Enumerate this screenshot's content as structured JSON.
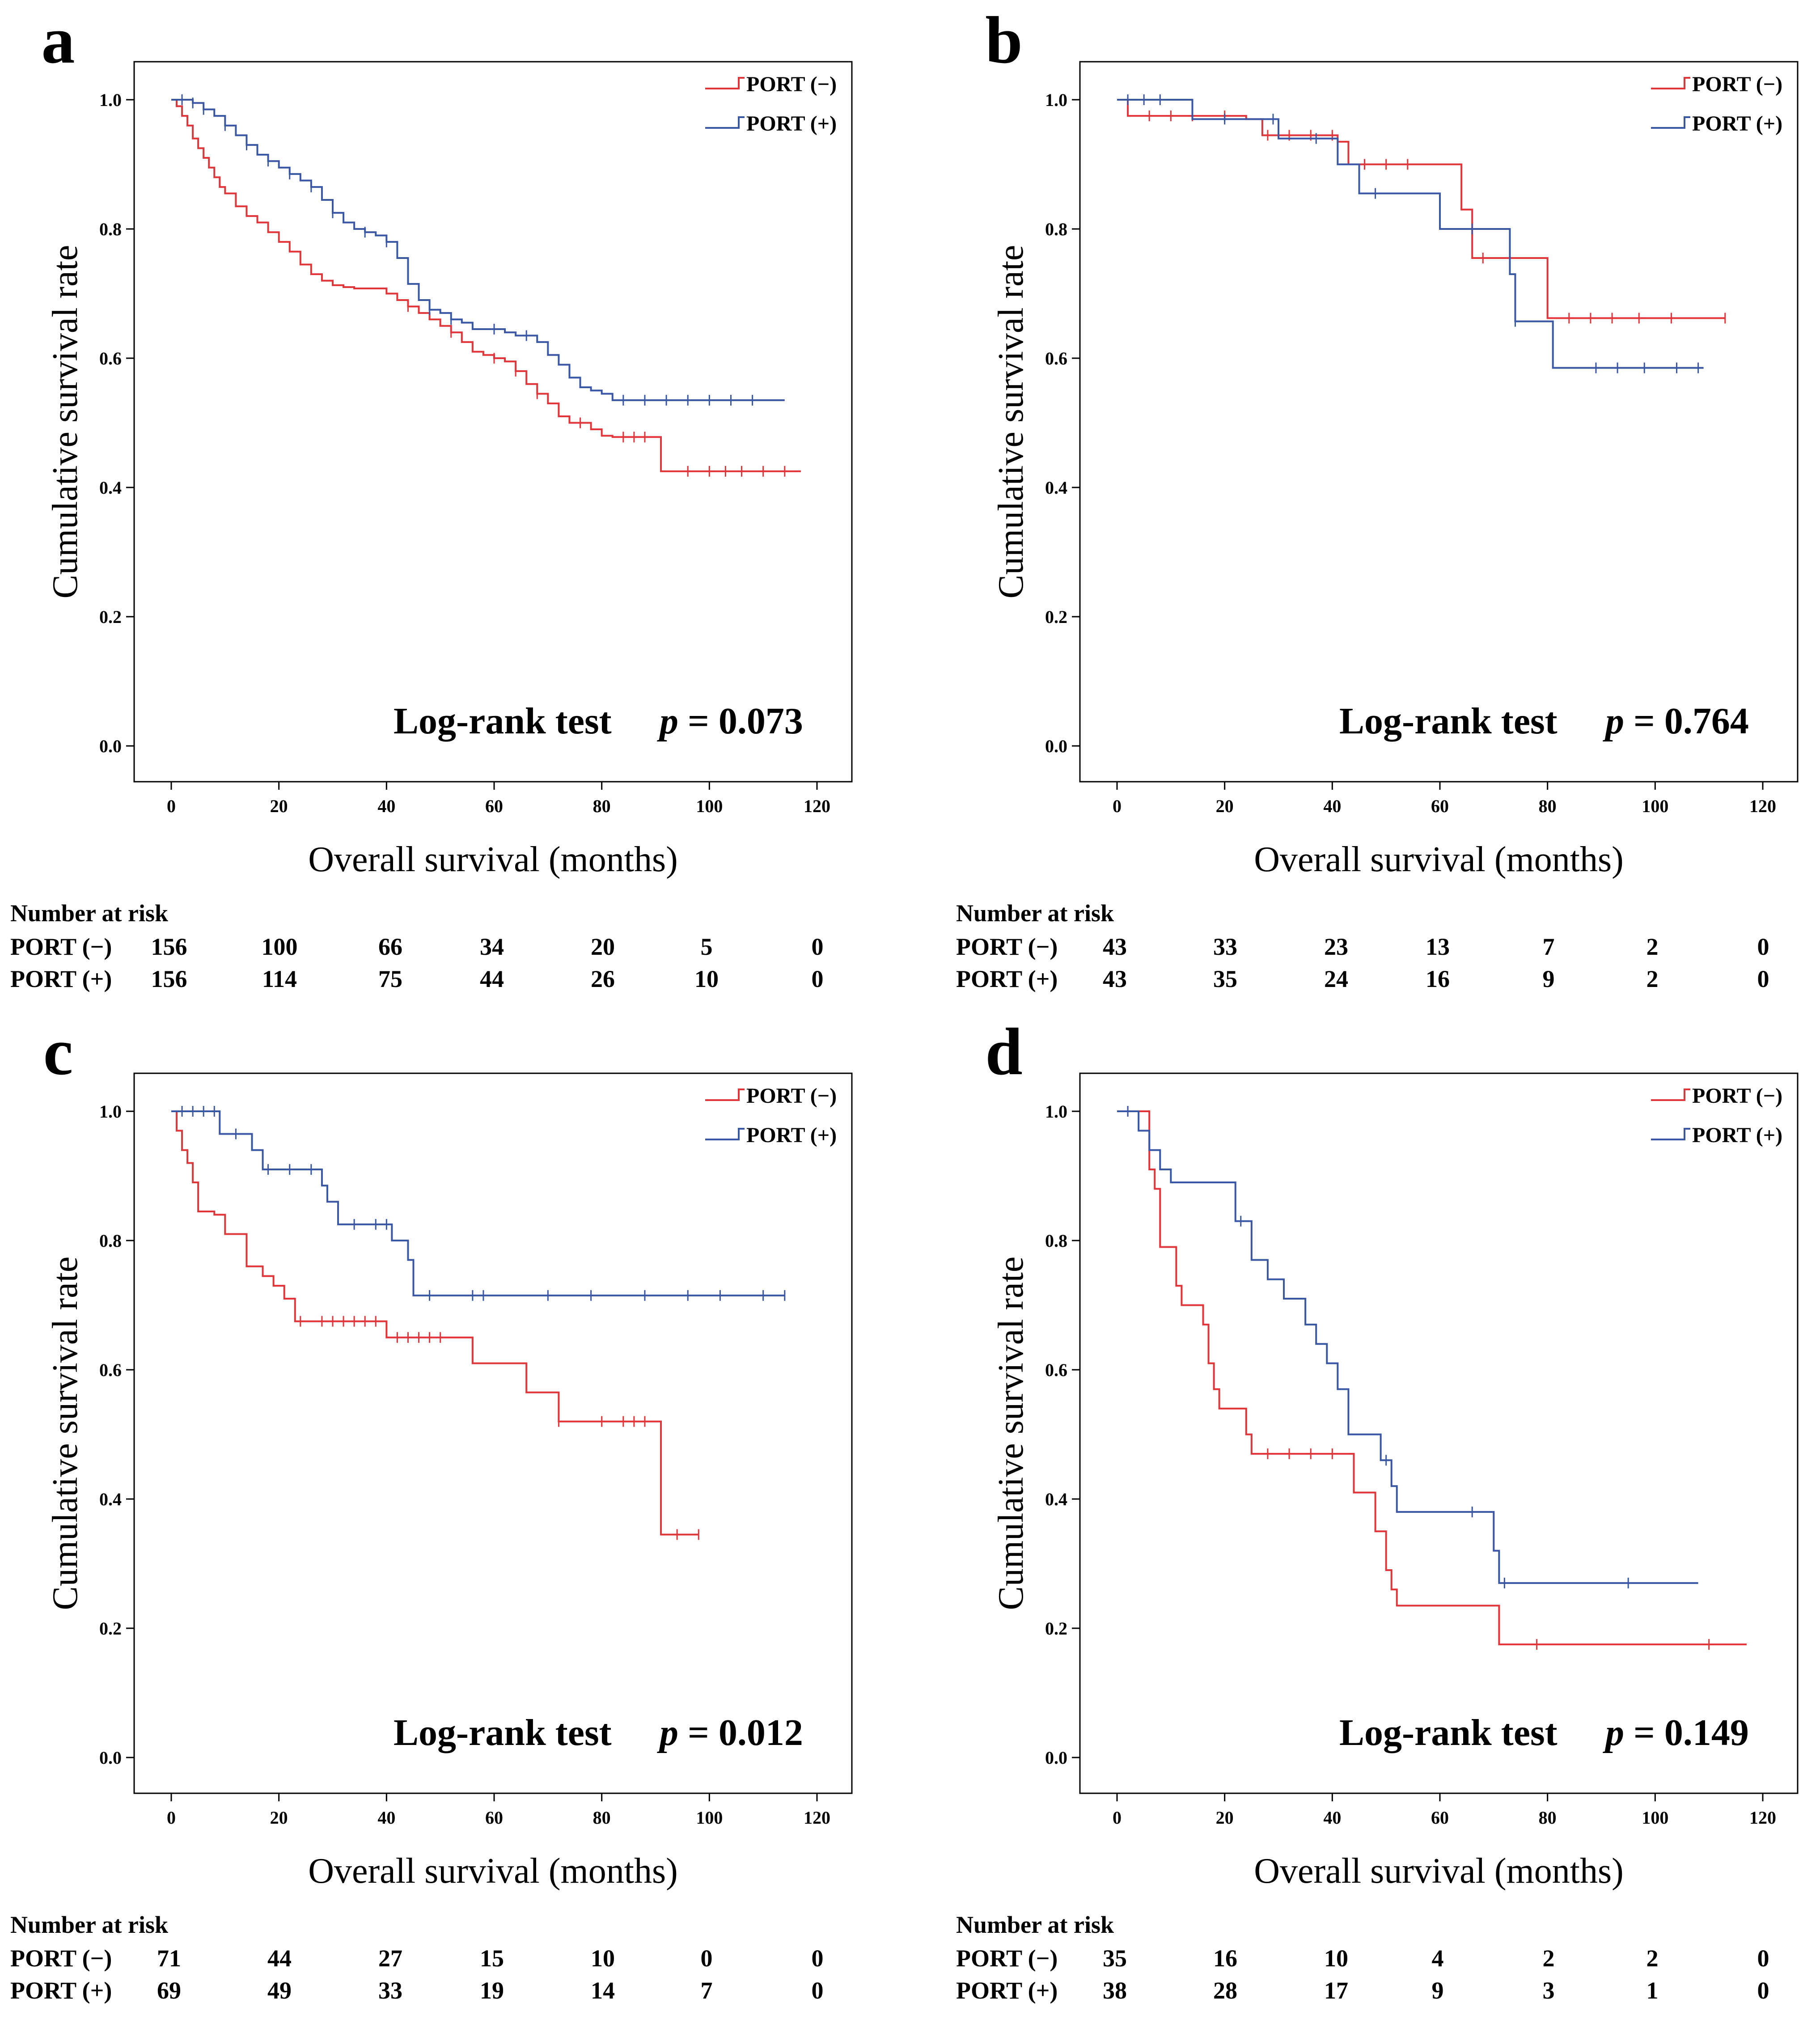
{
  "colors": {
    "port_minus": "#e2353a",
    "port_plus": "#3a57a6",
    "axis": "#000000"
  },
  "risk_header": "Number at risk",
  "chart_data": [
    {
      "panel": "a",
      "type": "line",
      "xlabel": "Overall survival (months)",
      "ylabel": "Cumulative survival rate",
      "xlim": [
        0,
        120
      ],
      "ylim": [
        0,
        1
      ],
      "xticks": [
        "0",
        "20",
        "40",
        "60",
        "80",
        "100",
        "120"
      ],
      "yticks": [
        "0.0",
        "0.2",
        "0.4",
        "0.6",
        "0.8",
        "1.0"
      ],
      "legend": [
        "PORT (−)",
        "PORT (+)"
      ],
      "logrank_label": "Log-rank test",
      "p_label": "p",
      "p_value": "= 0.073",
      "series": [
        {
          "name": "PORT (−)",
          "color": "port_minus",
          "x": [
            0,
            1,
            2,
            3,
            4,
            5,
            6,
            7,
            8,
            9,
            10,
            12,
            14,
            16,
            18,
            20,
            22,
            24,
            26,
            28,
            30,
            32,
            34,
            36,
            38,
            40,
            42,
            44,
            46,
            48,
            50,
            52,
            54,
            56,
            58,
            60,
            62,
            64,
            66,
            68,
            70,
            72,
            74,
            76,
            78,
            80,
            82,
            86,
            88,
            91,
            94,
            117
          ],
          "y": [
            1.0,
            0.99,
            0.975,
            0.96,
            0.94,
            0.925,
            0.91,
            0.895,
            0.88,
            0.865,
            0.855,
            0.835,
            0.82,
            0.81,
            0.795,
            0.78,
            0.765,
            0.745,
            0.73,
            0.72,
            0.713,
            0.71,
            0.708,
            0.708,
            0.708,
            0.7,
            0.69,
            0.68,
            0.67,
            0.66,
            0.65,
            0.64,
            0.625,
            0.61,
            0.605,
            0.6,
            0.595,
            0.58,
            0.56,
            0.545,
            0.53,
            0.51,
            0.5,
            0.5,
            0.49,
            0.48,
            0.478,
            0.478,
            0.478,
            0.425,
            0.425,
            0.425
          ],
          "censored": [
            44,
            52,
            60,
            64,
            68,
            76,
            84,
            86,
            88,
            96,
            100,
            103,
            106,
            110,
            114
          ]
        },
        {
          "name": "PORT (+)",
          "color": "port_plus",
          "x": [
            0,
            2,
            4,
            6,
            8,
            10,
            12,
            14,
            16,
            18,
            20,
            22,
            24,
            26,
            28,
            30,
            32,
            34,
            36,
            38,
            40,
            42,
            44,
            46,
            48,
            50,
            52,
            54,
            56,
            58,
            60,
            62,
            64,
            66,
            68,
            70,
            72,
            74,
            76,
            78,
            80,
            82,
            114
          ],
          "y": [
            1.0,
            1.0,
            0.995,
            0.985,
            0.975,
            0.96,
            0.945,
            0.93,
            0.915,
            0.905,
            0.895,
            0.885,
            0.875,
            0.865,
            0.845,
            0.825,
            0.81,
            0.8,
            0.795,
            0.79,
            0.78,
            0.755,
            0.715,
            0.69,
            0.675,
            0.67,
            0.66,
            0.655,
            0.645,
            0.645,
            0.645,
            0.64,
            0.635,
            0.635,
            0.625,
            0.605,
            0.59,
            0.57,
            0.555,
            0.55,
            0.545,
            0.535,
            0.535
          ],
          "censored": [
            2,
            4,
            6,
            10,
            14,
            18,
            22,
            26,
            30,
            36,
            40,
            48,
            52,
            60,
            66,
            84,
            88,
            92,
            96,
            100,
            104,
            108
          ]
        }
      ],
      "risk_times": [
        "0",
        "20",
        "40",
        "60",
        "80",
        "100",
        "120"
      ],
      "risk_rows": [
        {
          "label": "PORT (−)",
          "counts": [
            "156",
            "100",
            "66",
            "34",
            "20",
            "5",
            "0"
          ]
        },
        {
          "label": "PORT (+)",
          "counts": [
            "156",
            "114",
            "75",
            "44",
            "26",
            "10",
            "0"
          ]
        }
      ]
    },
    {
      "panel": "b",
      "type": "line",
      "xlabel": "Overall survival (months)",
      "ylabel": "Cumulative survival rate",
      "xlim": [
        0,
        120
      ],
      "ylim": [
        0,
        1
      ],
      "xticks": [
        "0",
        "20",
        "40",
        "60",
        "80",
        "100",
        "120"
      ],
      "yticks": [
        "0.0",
        "0.2",
        "0.4",
        "0.6",
        "0.8",
        "1.0"
      ],
      "legend": [
        "PORT (−)",
        "PORT (+)"
      ],
      "logrank_label": "Log-rank test",
      "p_label": "p",
      "p_value": "= 0.764",
      "series": [
        {
          "name": "PORT (−)",
          "color": "port_minus",
          "x": [
            0,
            2,
            24,
            27,
            41,
            43,
            63,
            64,
            66,
            78,
            80,
            113
          ],
          "y": [
            1.0,
            0.975,
            0.97,
            0.945,
            0.935,
            0.9,
            0.9,
            0.83,
            0.755,
            0.755,
            0.662,
            0.662
          ],
          "censored": [
            6,
            10,
            14,
            20,
            28,
            32,
            36,
            40,
            46,
            50,
            54,
            68,
            84,
            88,
            92,
            97,
            103,
            113
          ]
        },
        {
          "name": "PORT (+)",
          "color": "port_plus",
          "x": [
            0,
            14,
            30,
            41,
            45,
            60,
            65,
            73,
            74,
            80,
            81,
            109
          ],
          "y": [
            1.0,
            0.97,
            0.94,
            0.9,
            0.855,
            0.8,
            0.8,
            0.73,
            0.657,
            0.657,
            0.585,
            0.585
          ],
          "censored": [
            2,
            5,
            8,
            20,
            29,
            37,
            48,
            66,
            74,
            89,
            93,
            98,
            104,
            108
          ]
        }
      ],
      "risk_times": [
        "0",
        "20",
        "40",
        "60",
        "80",
        "100",
        "120"
      ],
      "risk_rows": [
        {
          "label": "PORT (−)",
          "counts": [
            "43",
            "33",
            "23",
            "13",
            "7",
            "2",
            "0"
          ]
        },
        {
          "label": "PORT (+)",
          "counts": [
            "43",
            "35",
            "24",
            "16",
            "9",
            "2",
            "0"
          ]
        }
      ]
    },
    {
      "panel": "c",
      "type": "line",
      "xlabel": "Overall survival (months)",
      "ylabel": "Cumulative survival rate",
      "xlim": [
        0,
        120
      ],
      "ylim": [
        0,
        1
      ],
      "xticks": [
        "0",
        "20",
        "40",
        "60",
        "80",
        "100",
        "120"
      ],
      "yticks": [
        "0.0",
        "0.2",
        "0.4",
        "0.6",
        "0.8",
        "1.0"
      ],
      "legend": [
        "PORT (−)",
        "PORT (+)"
      ],
      "logrank_label": "Log-rank test",
      "p_label": "p",
      "p_value": "= 0.012",
      "series": [
        {
          "name": "PORT (−)",
          "color": "port_minus",
          "x": [
            0,
            1,
            2,
            3,
            4,
            5,
            8,
            10,
            14,
            17,
            19,
            21,
            23,
            40,
            56,
            66,
            72,
            91,
            98
          ],
          "y": [
            1.0,
            0.97,
            0.94,
            0.92,
            0.89,
            0.845,
            0.84,
            0.81,
            0.76,
            0.745,
            0.73,
            0.71,
            0.675,
            0.65,
            0.61,
            0.565,
            0.52,
            0.345,
            0.345
          ],
          "censored": [
            24,
            28,
            30,
            32,
            34,
            36,
            38,
            42,
            44,
            46,
            48,
            50,
            72,
            80,
            84,
            86,
            88,
            94,
            98
          ]
        },
        {
          "name": "PORT (+)",
          "color": "port_plus",
          "x": [
            0,
            9,
            15,
            17,
            28,
            29,
            31,
            41,
            44,
            45,
            114
          ],
          "y": [
            1.0,
            0.965,
            0.94,
            0.91,
            0.885,
            0.86,
            0.825,
            0.8,
            0.77,
            0.715,
            0.715
          ],
          "censored": [
            2,
            4,
            6,
            8,
            12,
            18,
            22,
            26,
            34,
            38,
            40,
            48,
            56,
            58,
            70,
            78,
            88,
            96,
            102,
            110,
            114
          ]
        }
      ],
      "risk_times": [
        "0",
        "20",
        "40",
        "60",
        "80",
        "100",
        "120"
      ],
      "risk_rows": [
        {
          "label": "PORT (−)",
          "counts": [
            "71",
            "44",
            "27",
            "15",
            "10",
            "0",
            "0"
          ]
        },
        {
          "label": "PORT (+)",
          "counts": [
            "69",
            "49",
            "33",
            "19",
            "14",
            "7",
            "0"
          ]
        }
      ]
    },
    {
      "panel": "d",
      "type": "line",
      "xlabel": "Overall survival (months)",
      "ylabel": "Cumulative survival rate",
      "xlim": [
        0,
        120
      ],
      "ylim": [
        0,
        1
      ],
      "xticks": [
        "0",
        "20",
        "40",
        "60",
        "80",
        "100",
        "120"
      ],
      "yticks": [
        "0.0",
        "0.2",
        "0.4",
        "0.6",
        "0.8",
        "1.0"
      ],
      "legend": [
        "PORT (−)",
        "PORT (+)"
      ],
      "logrank_label": "Log-rank test",
      "p_label": "p",
      "p_value": "= 0.149",
      "series": [
        {
          "name": "PORT (−)",
          "color": "port_minus",
          "x": [
            0,
            6,
            7,
            8,
            10,
            11,
            12,
            16,
            17,
            18,
            19,
            22,
            24,
            25,
            44,
            48,
            50,
            51,
            52,
            71,
            117
          ],
          "y": [
            1.0,
            0.91,
            0.88,
            0.79,
            0.79,
            0.73,
            0.7,
            0.67,
            0.61,
            0.57,
            0.54,
            0.54,
            0.5,
            0.47,
            0.41,
            0.35,
            0.29,
            0.26,
            0.235,
            0.175,
            0.175
          ],
          "censored": [
            2,
            28,
            32,
            36,
            40,
            78,
            110
          ]
        },
        {
          "name": "PORT (+)",
          "color": "port_plus",
          "x": [
            0,
            4,
            6,
            8,
            10,
            14,
            22,
            25,
            28,
            31,
            35,
            37,
            39,
            41,
            43,
            45,
            49,
            51,
            52,
            69,
            70,
            71,
            108
          ],
          "y": [
            1.0,
            0.97,
            0.94,
            0.91,
            0.89,
            0.89,
            0.83,
            0.77,
            0.74,
            0.71,
            0.67,
            0.64,
            0.61,
            0.57,
            0.5,
            0.5,
            0.46,
            0.42,
            0.38,
            0.38,
            0.32,
            0.27,
            0.27
          ],
          "censored": [
            2,
            23,
            50,
            66,
            72,
            95
          ]
        }
      ],
      "risk_times": [
        "0",
        "20",
        "40",
        "60",
        "80",
        "100",
        "120"
      ],
      "risk_rows": [
        {
          "label": "PORT (−)",
          "counts": [
            "35",
            "16",
            "10",
            "4",
            "2",
            "2",
            "0"
          ]
        },
        {
          "label": "PORT (+)",
          "counts": [
            "38",
            "28",
            "17",
            "9",
            "3",
            "1",
            "0"
          ]
        }
      ]
    }
  ]
}
